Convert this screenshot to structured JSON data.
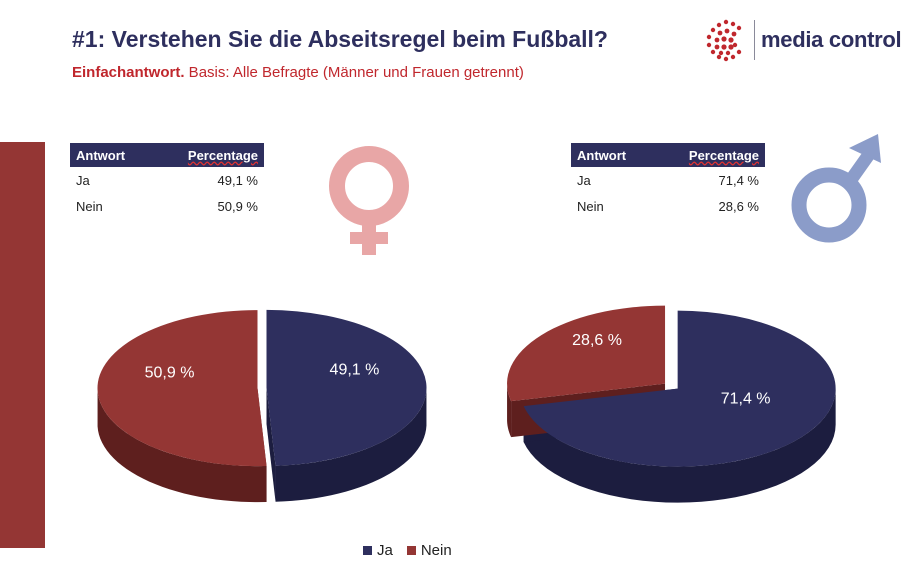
{
  "title": "#1: Verstehen Sie die Abseitsregel beim Fußball?",
  "subtitle_bold": "Einfachantwort.",
  "subtitle_rest": " Basis: Alle Befragte (Männer und Frauen getrennt)",
  "logo": {
    "text": "media control",
    "icon": "dot-grid-logo-icon"
  },
  "colors": {
    "ja": "#2e2f5e",
    "nein": "#943634",
    "female_symbol": "#e8a6a6",
    "male_symbol": "#8b9cc9"
  },
  "tables": {
    "women": {
      "headers": [
        "Antwort",
        "Percentage"
      ],
      "rows": [
        {
          "answer": "Ja",
          "value": "49,1 %"
        },
        {
          "answer": "Nein",
          "value": "50,9 %"
        }
      ]
    },
    "men": {
      "headers": [
        "Antwort",
        "Percentage"
      ],
      "rows": [
        {
          "answer": "Ja",
          "value": "71,4 %"
        },
        {
          "answer": "Nein",
          "value": "28,6 %"
        }
      ]
    }
  },
  "chart_data": [
    {
      "type": "pie",
      "categories": [
        "Ja",
        "Nein"
      ],
      "values": [
        49.1,
        50.9
      ],
      "labels": [
        "49,1 %",
        "50,9 %"
      ],
      "legend": [
        "Ja",
        "Nein"
      ],
      "legend_position": "bottom"
    },
    {
      "type": "pie",
      "categories": [
        "Ja",
        "Nein"
      ],
      "values": [
        71.4,
        28.6
      ],
      "labels": [
        "71,4 %",
        "28,6 %"
      ],
      "legend": [
        "Ja",
        "Nein"
      ],
      "legend_position": "bottom"
    }
  ],
  "legend": {
    "ja": "Ja",
    "nein": "Nein"
  }
}
